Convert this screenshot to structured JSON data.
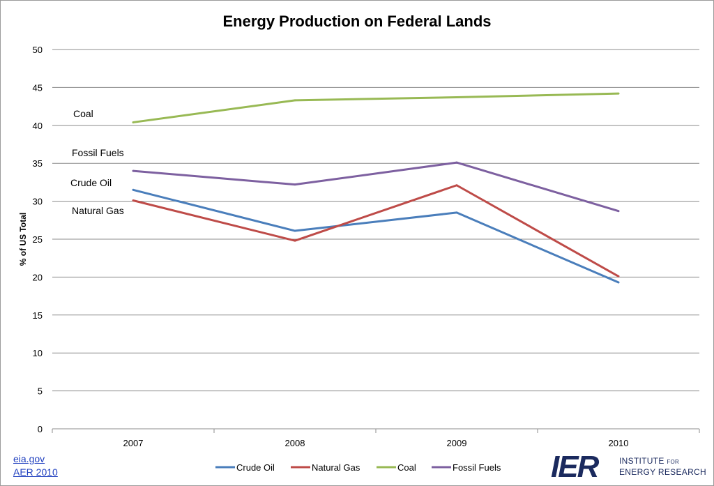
{
  "chart_data": {
    "type": "line",
    "title": "Energy Production on Federal Lands",
    "ylabel": "% of US Total",
    "xlabel": "",
    "categories": [
      "2007",
      "2008",
      "2009",
      "2010"
    ],
    "ylim": [
      0,
      50
    ],
    "yticks": [
      0,
      5,
      10,
      15,
      20,
      25,
      30,
      35,
      40,
      45,
      50
    ],
    "grid": true,
    "legend_position": "bottom",
    "series": [
      {
        "name": "Crude Oil",
        "color": "#4a7ebb",
        "values": [
          31.5,
          26.1,
          28.5,
          19.3
        ]
      },
      {
        "name": "Natural Gas",
        "color": "#be4b48",
        "values": [
          30.1,
          24.8,
          32.1,
          20.1
        ]
      },
      {
        "name": "Coal",
        "color": "#98b954",
        "values": [
          40.4,
          43.3,
          43.7,
          44.2
        ]
      },
      {
        "name": "Fossil Fuels",
        "color": "#7d60a0",
        "values": [
          34.0,
          32.2,
          35.1,
          28.7
        ]
      }
    ],
    "annotations": [
      {
        "text": "Coal",
        "series": "Coal"
      },
      {
        "text": "Fossil Fuels",
        "series": "Fossil Fuels"
      },
      {
        "text": "Crude Oil",
        "series": "Crude Oil"
      },
      {
        "text": "Natural Gas",
        "series": "Natural Gas"
      }
    ]
  },
  "source": {
    "line1": "eia.gov",
    "line2": "AER 2010"
  },
  "logo": {
    "mark": "IER",
    "line1": "INSTITUTE",
    "line1_small": "FOR",
    "line2": "ENERGY RESEARCH"
  }
}
